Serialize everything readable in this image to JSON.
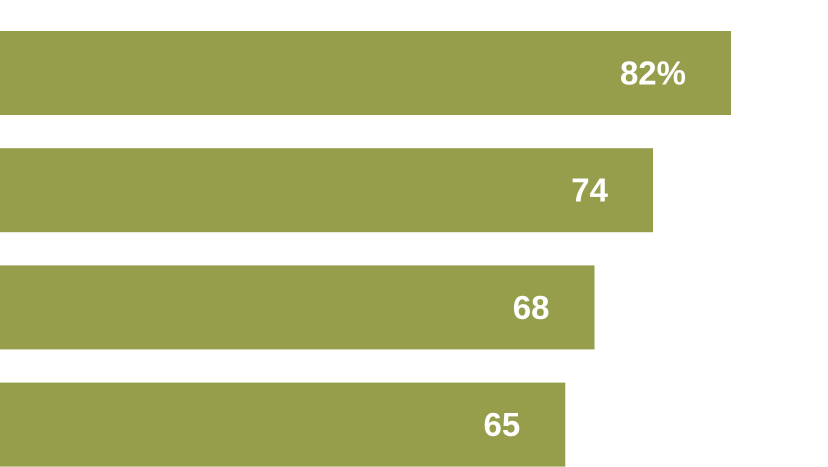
{
  "chart_data": {
    "type": "bar",
    "orientation": "horizontal",
    "values": [
      82,
      74,
      68,
      65
    ],
    "value_labels": [
      "82%",
      "74",
      "68",
      "65"
    ],
    "color": "#969d4b"
  }
}
